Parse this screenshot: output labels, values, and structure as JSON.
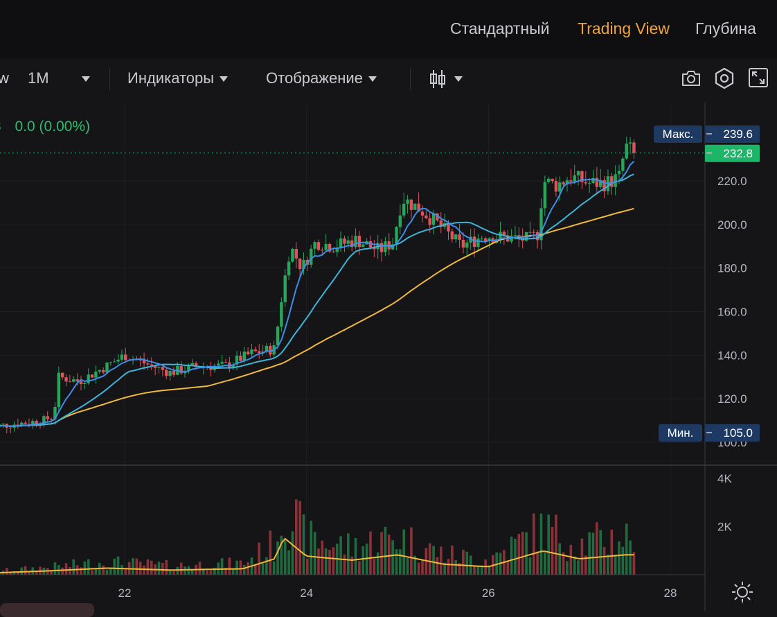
{
  "view_tabs": [
    "Стандартный",
    "Trading View",
    "Глубина"
  ],
  "active_view": "Trading View",
  "toolbar": {
    "partial_left": "w",
    "interval": "1M",
    "indicators_label": "Индикаторы",
    "display_label": "Отображение"
  },
  "legend": {
    "partial_prefix": "3",
    "change_text": "0.0 (0.00%)"
  },
  "colors": {
    "up": "#26a65b",
    "down": "#e0535d",
    "ma_fast": "#3d8ee8",
    "ma_mid": "#3fb4d9",
    "ma_slow": "#f0b93a",
    "last_price": "#1db668",
    "label_bg": "#1e3a63"
  },
  "icons": [
    "camera-icon",
    "settings-hex-icon",
    "fullscreen-icon",
    "candle-type-icon",
    "sun-settings-icon"
  ],
  "chart_data": {
    "type": "candlestick",
    "x_ticks": [
      "22",
      "24",
      "26",
      "28"
    ],
    "y_ticks": [
      "100.0",
      "120.0",
      "140.0",
      "160.0",
      "180.0",
      "200.0",
      "220.0"
    ],
    "ylim": [
      98,
      240
    ],
    "max_label": "Макс.",
    "max_value": "239.6",
    "min_label": "Мин.",
    "min_value": "105.0",
    "last_price": "232.8",
    "volume_ticks": [
      "4K",
      "2K"
    ],
    "price_path_keypoints": [
      {
        "x": 20.5,
        "y": 107
      },
      {
        "x": 21.1,
        "y": 110
      },
      {
        "x": 21.22,
        "y": 112
      },
      {
        "x": 21.27,
        "y": 130
      },
      {
        "x": 21.5,
        "y": 128
      },
      {
        "x": 21.8,
        "y": 135
      },
      {
        "x": 22.0,
        "y": 140
      },
      {
        "x": 22.3,
        "y": 135
      },
      {
        "x": 22.5,
        "y": 132
      },
      {
        "x": 22.8,
        "y": 135
      },
      {
        "x": 23.1,
        "y": 135
      },
      {
        "x": 23.4,
        "y": 141
      },
      {
        "x": 23.65,
        "y": 143
      },
      {
        "x": 23.72,
        "y": 165
      },
      {
        "x": 23.82,
        "y": 190
      },
      {
        "x": 23.95,
        "y": 180
      },
      {
        "x": 24.1,
        "y": 192
      },
      {
        "x": 24.3,
        "y": 190
      },
      {
        "x": 24.55,
        "y": 193
      },
      {
        "x": 24.8,
        "y": 188
      },
      {
        "x": 24.95,
        "y": 192
      },
      {
        "x": 25.05,
        "y": 212
      },
      {
        "x": 25.25,
        "y": 207
      },
      {
        "x": 25.45,
        "y": 200
      },
      {
        "x": 25.7,
        "y": 190
      },
      {
        "x": 25.95,
        "y": 195
      },
      {
        "x": 26.2,
        "y": 194
      },
      {
        "x": 26.45,
        "y": 193
      },
      {
        "x": 26.55,
        "y": 196
      },
      {
        "x": 26.6,
        "y": 220
      },
      {
        "x": 26.75,
        "y": 218
      },
      {
        "x": 26.9,
        "y": 222
      },
      {
        "x": 27.1,
        "y": 219
      },
      {
        "x": 27.3,
        "y": 219
      },
      {
        "x": 27.45,
        "y": 222
      },
      {
        "x": 27.5,
        "y": 236
      },
      {
        "x": 27.6,
        "y": 232.8
      }
    ],
    "volume_profile": [
      {
        "x": 20.5,
        "v": 120
      },
      {
        "x": 21.2,
        "v": 300
      },
      {
        "x": 21.8,
        "v": 500
      },
      {
        "x": 22.5,
        "v": 350
      },
      {
        "x": 23.3,
        "v": 450
      },
      {
        "x": 23.65,
        "v": 1200
      },
      {
        "x": 23.75,
        "v": 2800
      },
      {
        "x": 24.0,
        "v": 1400
      },
      {
        "x": 24.5,
        "v": 1100
      },
      {
        "x": 25.0,
        "v": 1500
      },
      {
        "x": 25.5,
        "v": 800
      },
      {
        "x": 26.0,
        "v": 600
      },
      {
        "x": 26.6,
        "v": 1800
      },
      {
        "x": 27.0,
        "v": 1200
      },
      {
        "x": 27.5,
        "v": 1500
      }
    ]
  }
}
